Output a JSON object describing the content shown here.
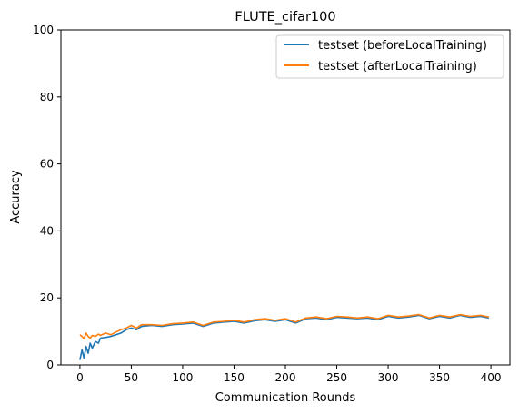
{
  "chart_data": {
    "type": "line",
    "title": "FLUTE_cifar100",
    "xlabel": "Communication Rounds",
    "ylabel": "Accuracy",
    "xlim": [
      -18.5,
      418.5
    ],
    "ylim": [
      0,
      100
    ],
    "xticks": [
      0,
      50,
      100,
      150,
      200,
      250,
      300,
      350,
      400
    ],
    "yticks": [
      0,
      20,
      40,
      60,
      80,
      100
    ],
    "legend_position": "top-right",
    "grid": false,
    "series": [
      {
        "name": "testset (beforeLocalTraining)",
        "color": "#1f77b4",
        "x": [
          0,
          2,
          4,
          6,
          8,
          10,
          12,
          15,
          18,
          20,
          25,
          30,
          35,
          40,
          45,
          50,
          55,
          60,
          70,
          80,
          90,
          100,
          110,
          120,
          130,
          140,
          150,
          160,
          170,
          180,
          190,
          200,
          210,
          220,
          230,
          240,
          250,
          260,
          270,
          280,
          290,
          300,
          310,
          320,
          330,
          340,
          350,
          360,
          370,
          380,
          390,
          398
        ],
        "y": [
          1.5,
          4.5,
          2.0,
          5.5,
          3.5,
          6.5,
          5.0,
          7.0,
          6.5,
          8.0,
          8.2,
          8.5,
          9.0,
          9.5,
          10.5,
          11.0,
          10.5,
          11.5,
          11.8,
          11.5,
          12.0,
          12.2,
          12.5,
          11.5,
          12.5,
          12.8,
          13.0,
          12.5,
          13.2,
          13.5,
          13.0,
          13.5,
          12.5,
          13.8,
          14.0,
          13.5,
          14.2,
          14.0,
          13.8,
          14.0,
          13.5,
          14.5,
          14.0,
          14.3,
          14.8,
          13.8,
          14.5,
          14.0,
          14.8,
          14.2,
          14.5,
          14.0
        ]
      },
      {
        "name": "testset (afterLocalTraining)",
        "color": "#ff7f0e",
        "x": [
          0,
          2,
          4,
          6,
          8,
          10,
          12,
          15,
          18,
          20,
          25,
          30,
          35,
          40,
          45,
          50,
          55,
          60,
          70,
          80,
          90,
          100,
          110,
          120,
          130,
          140,
          150,
          160,
          170,
          180,
          190,
          200,
          210,
          220,
          230,
          240,
          250,
          260,
          270,
          280,
          290,
          300,
          310,
          320,
          330,
          340,
          350,
          360,
          370,
          380,
          390,
          398
        ],
        "y": [
          9.0,
          8.5,
          7.8,
          9.5,
          8.5,
          8.0,
          8.8,
          8.5,
          9.2,
          8.8,
          9.5,
          9.0,
          9.8,
          10.5,
          11.0,
          11.8,
          11.0,
          12.0,
          12.0,
          11.8,
          12.3,
          12.5,
          12.8,
          11.8,
          12.8,
          13.0,
          13.3,
          12.8,
          13.5,
          13.8,
          13.3,
          13.8,
          12.8,
          14.0,
          14.3,
          13.8,
          14.5,
          14.3,
          14.0,
          14.3,
          13.8,
          14.8,
          14.3,
          14.6,
          15.0,
          14.0,
          14.8,
          14.3,
          15.0,
          14.5,
          14.8,
          14.3
        ]
      }
    ]
  }
}
